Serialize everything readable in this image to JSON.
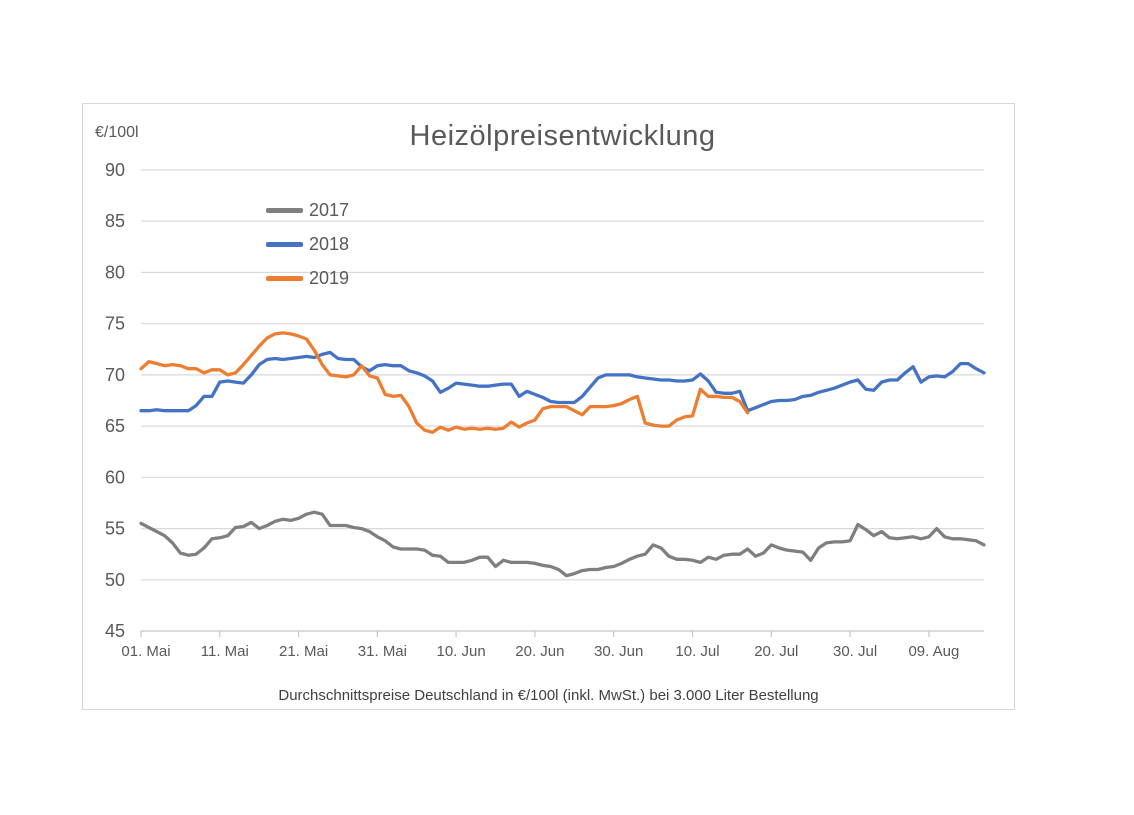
{
  "chart_data": {
    "type": "line",
    "title": "Heizölpreisentwicklung",
    "ylabel": "€/100l",
    "xlabel": "",
    "caption": "Durchschnittspreise Deutschland in €/100l (inkl. MwSt.) bei 3.000 Liter Bestellung",
    "ylim": [
      45,
      90
    ],
    "yticks": [
      45,
      50,
      55,
      60,
      65,
      70,
      75,
      80,
      85,
      90
    ],
    "x_unit": "daily values starting 01. Mai",
    "x_days": 108,
    "xtick_days": [
      1,
      11,
      21,
      31,
      41,
      51,
      61,
      71,
      81,
      91,
      101
    ],
    "xtick_labels": [
      "01. Mai",
      "11. Mai",
      "21. Mai",
      "31. Mai",
      "10. Jun",
      "20. Jun",
      "30. Jun",
      "10. Jul",
      "20. Jul",
      "30. Jul",
      "09. Aug"
    ],
    "grid": "horizontal",
    "legend_position": "inside-upper-left",
    "colors": {
      "gridline": "#d9d9d9",
      "axis_line": "#c6c6c6",
      "tick_text": "#595959",
      "title_text": "#595959"
    },
    "series": [
      {
        "name": "2017",
        "color": "#7f7f7f",
        "start_date": "01. Mai",
        "values": [
          55.5,
          55.1,
          54.7,
          54.3,
          53.6,
          52.6,
          52.4,
          52.5,
          53.1,
          54.0,
          54.1,
          54.3,
          55.1,
          55.2,
          55.6,
          55.0,
          55.3,
          55.7,
          55.9,
          55.8,
          56.0,
          56.4,
          56.6,
          56.4,
          55.3,
          55.3,
          55.3,
          55.1,
          55.0,
          54.7,
          54.2,
          53.8,
          53.2,
          53.0,
          53.0,
          53.0,
          52.9,
          52.4,
          52.3,
          51.7,
          51.7,
          51.7,
          51.9,
          52.2,
          52.2,
          51.3,
          51.9,
          51.7,
          51.7,
          51.7,
          51.6,
          51.4,
          51.3,
          51.0,
          50.4,
          50.6,
          50.9,
          51.0,
          51.0,
          51.2,
          51.3,
          51.6,
          52.0,
          52.3,
          52.5,
          53.4,
          53.1,
          52.3,
          52.0,
          52.0,
          51.9,
          51.7,
          52.2,
          52.0,
          52.4,
          52.5,
          52.5,
          53.0,
          52.3,
          52.6,
          53.4,
          53.1,
          52.9,
          52.8,
          52.7,
          51.9,
          53.1,
          53.6,
          53.7,
          53.7,
          53.8,
          55.4,
          54.9,
          54.3,
          54.7,
          54.1,
          54.0,
          54.1,
          54.2,
          54.0,
          54.2,
          55.0,
          54.2,
          54.0,
          54.0,
          53.9,
          53.8,
          53.4
        ]
      },
      {
        "name": "2018",
        "color": "#4472c4",
        "start_date": "01. Mai",
        "values": [
          66.5,
          66.5,
          66.6,
          66.5,
          66.5,
          66.5,
          66.5,
          67.0,
          67.9,
          67.9,
          69.3,
          69.4,
          69.3,
          69.2,
          70.0,
          71.0,
          71.5,
          71.6,
          71.5,
          71.6,
          71.7,
          71.8,
          71.7,
          72.0,
          72.2,
          71.6,
          71.5,
          71.5,
          70.8,
          70.4,
          70.9,
          71.0,
          70.9,
          70.9,
          70.4,
          70.2,
          69.9,
          69.4,
          68.3,
          68.7,
          69.2,
          69.1,
          69.0,
          68.9,
          68.9,
          69.0,
          69.1,
          69.1,
          67.9,
          68.4,
          68.1,
          67.8,
          67.4,
          67.3,
          67.3,
          67.3,
          67.9,
          68.8,
          69.7,
          70.0,
          70.0,
          70.0,
          70.0,
          69.8,
          69.7,
          69.6,
          69.5,
          69.5,
          69.4,
          69.4,
          69.5,
          70.1,
          69.4,
          68.3,
          68.2,
          68.2,
          68.4,
          66.5,
          66.8,
          67.1,
          67.4,
          67.5,
          67.5,
          67.6,
          67.9,
          68.0,
          68.3,
          68.5,
          68.7,
          69.0,
          69.3,
          69.5,
          68.6,
          68.5,
          69.3,
          69.5,
          69.5,
          70.2,
          70.8,
          69.3,
          69.8,
          69.9,
          69.8,
          70.3,
          71.1,
          71.1,
          70.6,
          70.2
        ]
      },
      {
        "name": "2019",
        "color": "#ed7d31",
        "start_date": "01. Mai",
        "values": [
          70.6,
          71.3,
          71.1,
          70.9,
          71.0,
          70.9,
          70.6,
          70.6,
          70.2,
          70.5,
          70.5,
          70.0,
          70.2,
          71.0,
          71.9,
          72.8,
          73.6,
          74.0,
          74.1,
          74.0,
          73.8,
          73.5,
          72.4,
          71.0,
          70.0,
          69.9,
          69.8,
          70.0,
          70.9,
          69.9,
          69.7,
          68.1,
          67.9,
          68.0,
          66.9,
          65.3,
          64.6,
          64.4,
          64.9,
          64.6,
          64.9,
          64.7,
          64.8,
          64.7,
          64.8,
          64.7,
          64.8,
          65.4,
          64.9,
          65.3,
          65.6,
          66.7,
          66.9,
          66.9,
          66.9,
          66.5,
          66.1,
          66.9,
          66.9,
          66.9,
          67.0,
          67.2,
          67.6,
          67.9,
          65.3,
          65.1,
          65.0,
          65.0,
          65.6,
          65.9,
          66.0,
          68.6,
          67.9,
          67.9,
          67.8,
          67.8,
          67.4,
          66.3
        ]
      }
    ]
  }
}
